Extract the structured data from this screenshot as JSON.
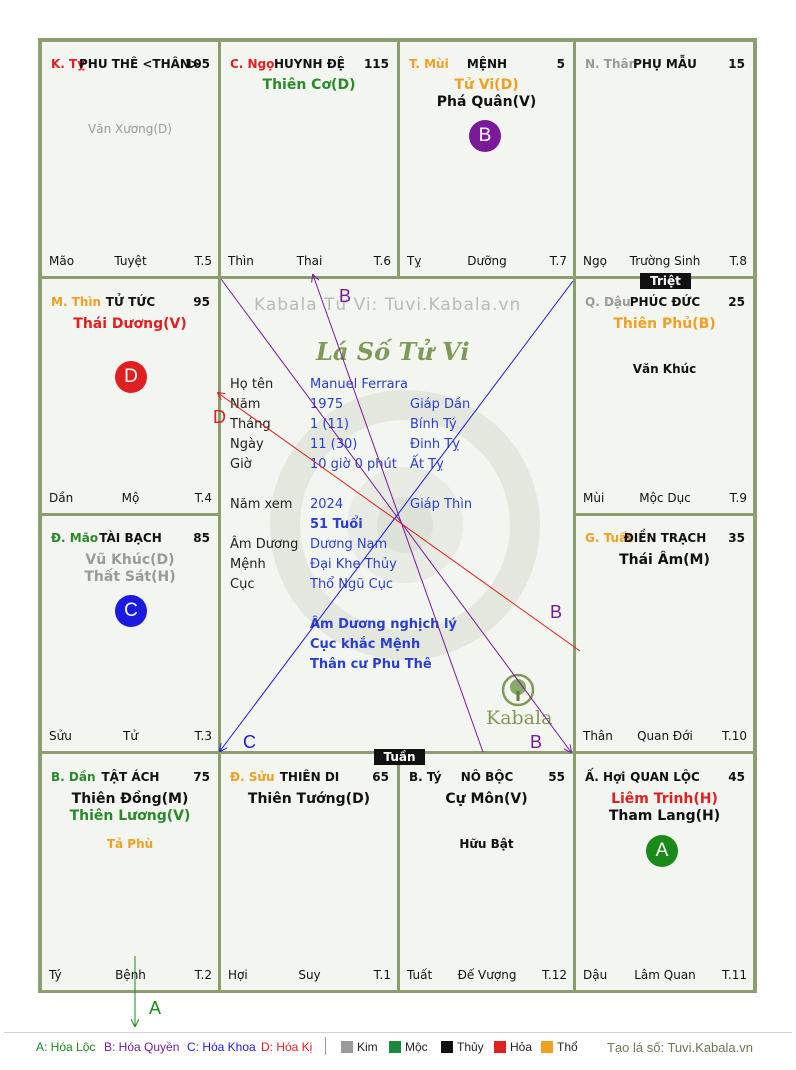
{
  "colors": {
    "grid_line": "#8a9e6e",
    "cell_bg": "#f3f5f0",
    "red": "#e02020",
    "green": "#2a8a2a",
    "orange": "#f0a020",
    "gray": "#9a9a9a",
    "purple": "#7a1a9a",
    "blue": "#1a1ae0",
    "center_text": "#2a3fd0"
  },
  "watermark": "Kabala Tử Vi: Tuvi.Kabala.vn",
  "chart_title": "Lá Số Tử Vi",
  "brand": "Kabala",
  "tags": {
    "triet": "Triệt",
    "tuan": "Tuần"
  },
  "palaces": [
    {
      "can_chi": "K. Tỵ",
      "can_chi_color": "#e02020",
      "name": "PHU THÊ <THÂN>",
      "num": "105",
      "stars": [],
      "minor": [
        {
          "text": "Văn Xương(D)",
          "color": "#9a9a9a"
        }
      ],
      "f_left": "Mão",
      "f_mid": "Tuyệt",
      "f_right": "T.5"
    },
    {
      "can_chi": "C. Ngọ",
      "can_chi_color": "#e02020",
      "name": "HUYNH ĐỆ",
      "num": "115",
      "stars": [
        {
          "text": "Thiên Cơ(D)",
          "color": "#2a8a2a"
        }
      ],
      "minor": [],
      "f_left": "Thìn",
      "f_mid": "Thai",
      "f_right": "T.6"
    },
    {
      "can_chi": "T. Mùi",
      "can_chi_color": "#f0a020",
      "name": "MỆNH",
      "num": "5",
      "stars": [
        {
          "text": "Tử Vi(D)",
          "color": "#f0a020"
        },
        {
          "text": "Phá Quân(V)",
          "color": "#111111"
        }
      ],
      "minor": [],
      "f_left": "Tỵ",
      "f_mid": "Dưỡng",
      "f_right": "T.7"
    },
    {
      "can_chi": "N. Thân",
      "can_chi_color": "#9a9a9a",
      "name": "PHỤ MẪU",
      "num": "15",
      "stars": [],
      "minor": [],
      "f_left": "Ngọ",
      "f_mid": "Trường Sinh",
      "f_right": "T.8"
    },
    {
      "can_chi": "M. Thìn",
      "can_chi_color": "#f0a020",
      "name": "TỬ TỨC",
      "num": "95",
      "stars": [
        {
          "text": "Thái Dương(V)",
          "color": "#e02020"
        }
      ],
      "minor": [],
      "f_left": "Dần",
      "f_mid": "Mộ",
      "f_right": "T.4"
    },
    {
      "can_chi": "Q. Dậu",
      "can_chi_color": "#9a9a9a",
      "name": "PHÚC ĐỨC",
      "num": "25",
      "stars": [
        {
          "text": "Thiên Phủ(B)",
          "color": "#f0a020"
        }
      ],
      "minor": [
        {
          "text": "Văn Khúc",
          "color": "#111111"
        }
      ],
      "f_left": "Mùi",
      "f_mid": "Mộc Dục",
      "f_right": "T.9"
    },
    {
      "can_chi": "Đ. Mão",
      "can_chi_color": "#2a8a2a",
      "name": "TÀI BẠCH",
      "num": "85",
      "stars": [
        {
          "text": "Vũ Khúc(D)",
          "color": "#9a9a9a"
        },
        {
          "text": "Thất Sát(H)",
          "color": "#9a9a9a"
        }
      ],
      "minor": [],
      "f_left": "Sửu",
      "f_mid": "Tử",
      "f_right": "T.3"
    },
    {
      "can_chi": "G. Tuất",
      "can_chi_color": "#f0a020",
      "name": "ĐIỀN TRẠCH",
      "num": "35",
      "stars": [
        {
          "text": "Thái Âm(M)",
          "color": "#111111"
        }
      ],
      "minor": [],
      "f_left": "Thân",
      "f_mid": "Quan Đới",
      "f_right": "T.10"
    },
    {
      "can_chi": "B. Dần",
      "can_chi_color": "#2a8a2a",
      "name": "TẬT ÁCH",
      "num": "75",
      "stars": [
        {
          "text": "Thiên Đồng(M)",
          "color": "#111111"
        },
        {
          "text": "Thiên Lương(V)",
          "color": "#2a8a2a"
        }
      ],
      "minor": [
        {
          "text": "Tả Phù",
          "color": "#f0a020"
        }
      ],
      "f_left": "Tý",
      "f_mid": "Bệnh",
      "f_right": "T.2"
    },
    {
      "can_chi": "Đ. Sửu",
      "can_chi_color": "#f0a020",
      "name": "THIÊN DI",
      "num": "65",
      "stars": [
        {
          "text": "Thiên Tướng(D)",
          "color": "#111111"
        }
      ],
      "minor": [],
      "f_left": "Hợi",
      "f_mid": "Suy",
      "f_right": "T.1"
    },
    {
      "can_chi": "B. Tý",
      "can_chi_color": "#111111",
      "name": "NÔ BỘC",
      "num": "55",
      "stars": [
        {
          "text": "Cự Môn(V)",
          "color": "#111111"
        }
      ],
      "minor": [
        {
          "text": "Hữu Bật",
          "color": "#111111"
        }
      ],
      "f_left": "Tuất",
      "f_mid": "Đế Vượng",
      "f_right": "T.12"
    },
    {
      "can_chi": "Ấ. Hợi",
      "can_chi_color": "#111111",
      "name": "QUAN LỘC",
      "num": "45",
      "stars": [
        {
          "text": "Liêm Trinh(H)",
          "color": "#e02020"
        },
        {
          "text": "Tham Lang(H)",
          "color": "#111111"
        }
      ],
      "minor": [],
      "f_left": "Dậu",
      "f_mid": "Lâm Quan",
      "f_right": "T.11"
    }
  ],
  "circles": [
    {
      "letter": "B",
      "color": "#7a1a9a"
    },
    {
      "letter": "D",
      "color": "#e02020"
    },
    {
      "letter": "C",
      "color": "#1a1ae0"
    },
    {
      "letter": "A",
      "color": "#1a8a1a"
    }
  ],
  "info": {
    "ho_ten_label": "Họ tên",
    "ho_ten": "Manuel Ferrara",
    "nam_label": "Năm",
    "nam": "1975",
    "nam_cc": "Giáp Dần",
    "thang_label": "Tháng",
    "thang": "1  (11)",
    "thang_cc": "Bính Tý",
    "ngay_label": "Ngày",
    "ngay": "11  (30)",
    "ngay_cc": "Đinh Tỵ",
    "gio_label": "Giờ",
    "gio": "10 giờ 0 phút",
    "gio_cc": "Ất Tỵ",
    "nam_xem_label": "Năm xem",
    "nam_xem": "2024",
    "nam_xem_cc": "Giáp Thìn",
    "tuoi": "51 Tuổi",
    "am_duong_label": "Âm Dương",
    "am_duong": "Dương Nam",
    "menh_label": "Mệnh",
    "menh": "Đại Khe Thủy",
    "cuc_label": "Cục",
    "cuc": "Thổ Ngũ Cục",
    "note1": "Âm Dương nghịch lý",
    "note2": "Cục khắc Mệnh",
    "note3": "Thân cư Phu Thê"
  },
  "arrow_labels": {
    "a1": "B",
    "a2": "D",
    "a3": "B",
    "a4": "C",
    "a5": "B",
    "a6": "A"
  },
  "legend": {
    "a": "A: Hóa Lộc",
    "b": "B: Hóa Quyền",
    "c": "C: Hóa Khoa",
    "d": "D: Hóa Kị",
    "kim": "Kim",
    "moc": "Mộc",
    "thuy": "Thủy",
    "hoa": "Hỏa",
    "tho": "Thổ",
    "source": "Tạo lá số: Tuvi.Kabala.vn"
  }
}
